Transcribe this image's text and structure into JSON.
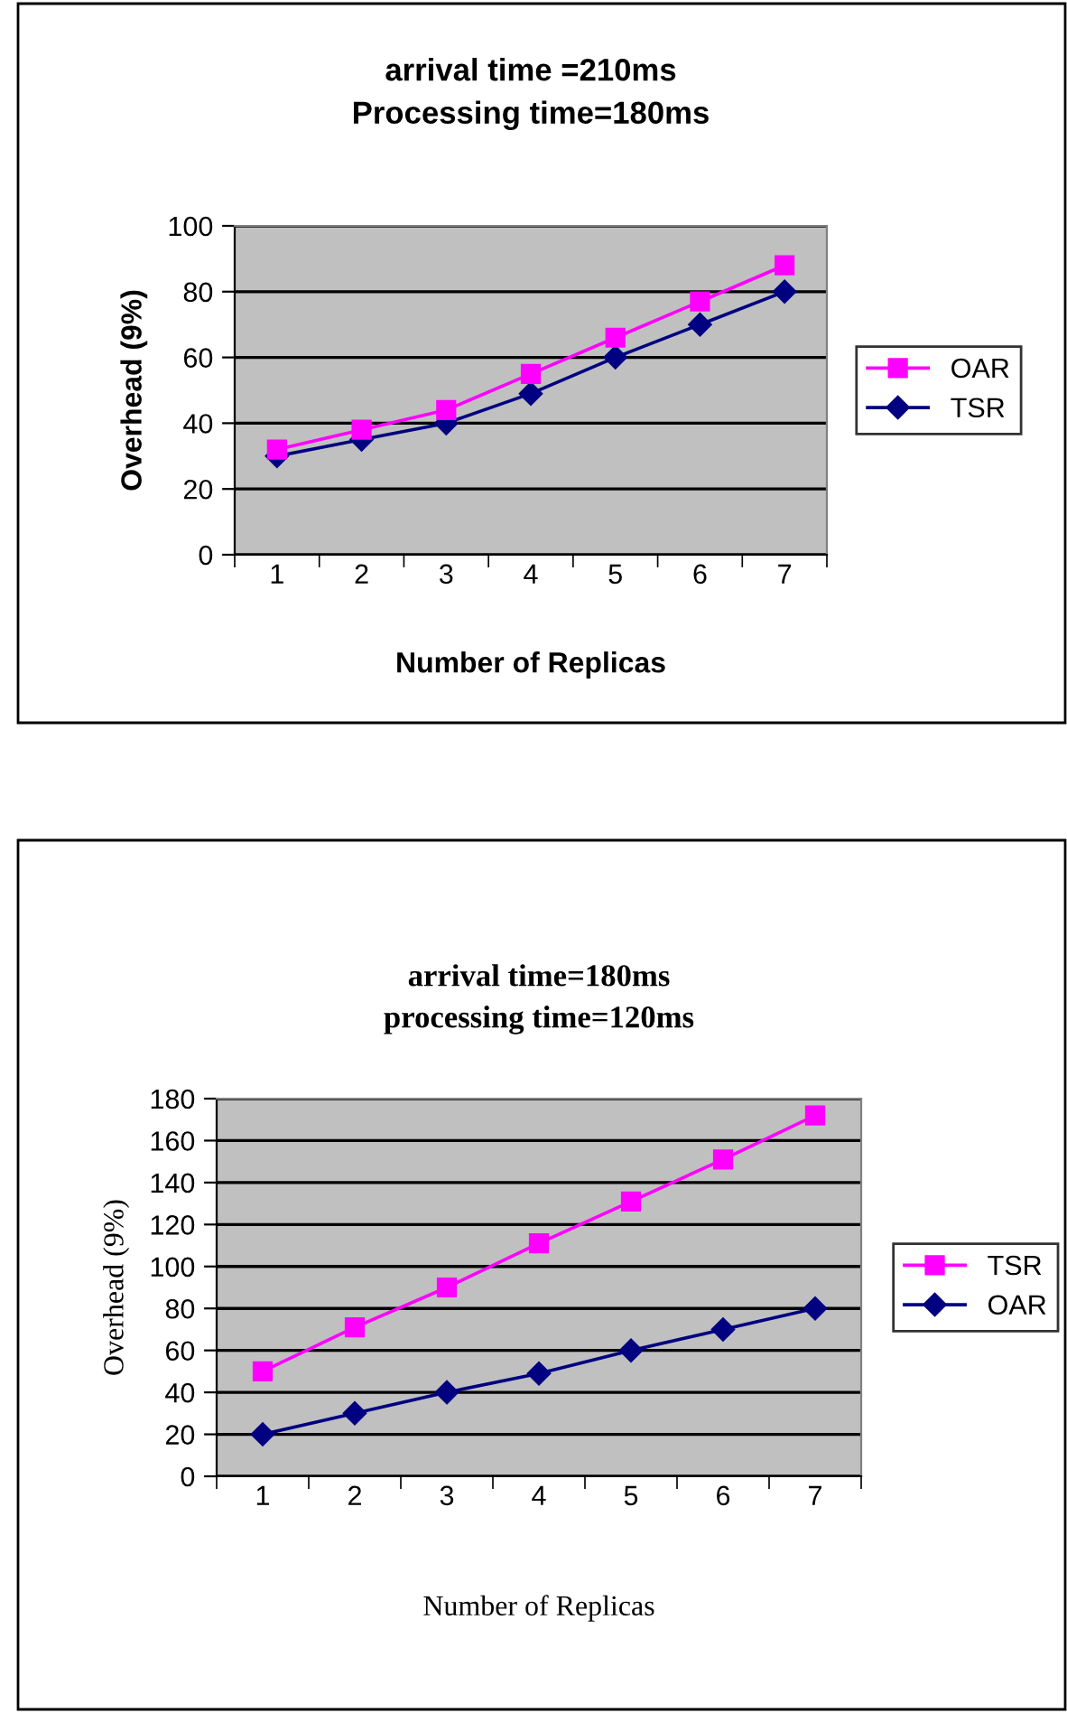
{
  "chart_data": [
    {
      "type": "line",
      "title": "arrival time =210ms\nProcessing time=180ms",
      "xlabel": "Number of Replicas",
      "ylabel": "Overhead (9%)",
      "categories": [
        "1",
        "2",
        "3",
        "4",
        "5",
        "6",
        "7"
      ],
      "series": [
        {
          "name": "OAR",
          "color": "#ff00ff",
          "marker": "square",
          "values": [
            32,
            38,
            44,
            55,
            66,
            77,
            88
          ]
        },
        {
          "name": "TSR",
          "color": "#000080",
          "marker": "diamond",
          "values": [
            30,
            35,
            40,
            49,
            60,
            70,
            80
          ]
        }
      ],
      "ylim": [
        0,
        100
      ],
      "yticks": [
        0,
        20,
        40,
        60,
        80,
        100
      ],
      "grid": "y",
      "legend": "right"
    },
    {
      "type": "line",
      "title": "arrival time=180ms\nprocessing time=120ms",
      "xlabel": "Number of Replicas",
      "ylabel": "Overhead (9%)",
      "categories": [
        "1",
        "2",
        "3",
        "4",
        "5",
        "6",
        "7"
      ],
      "series": [
        {
          "name": "TSR",
          "color": "#ff00ff",
          "marker": "square",
          "values": [
            50,
            71,
            90,
            111,
            131,
            151,
            172
          ]
        },
        {
          "name": "OAR",
          "color": "#000080",
          "marker": "diamond",
          "values": [
            20,
            30,
            40,
            49,
            60,
            70,
            80
          ]
        }
      ],
      "ylim": [
        0,
        180
      ],
      "yticks": [
        0,
        20,
        40,
        60,
        80,
        100,
        120,
        140,
        160,
        180
      ],
      "grid": "y",
      "legend": "right"
    }
  ]
}
